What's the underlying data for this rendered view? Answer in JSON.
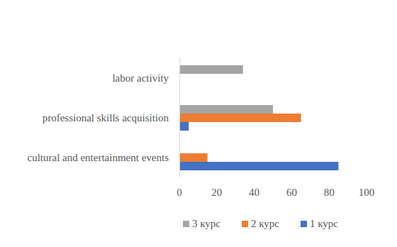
{
  "chart_data": {
    "type": "bar",
    "orientation": "horizontal",
    "categories": [
      "cultural and entertainment events",
      "professional skills acquisition",
      "labor activity"
    ],
    "series": [
      {
        "name": "1 курс",
        "color": "#4472c4",
        "values": [
          85,
          5,
          0
        ]
      },
      {
        "name": "2 курс",
        "color": "#ed7d31",
        "values": [
          15,
          65,
          0
        ]
      },
      {
        "name": "3 курс",
        "color": "#a5a5a5",
        "values": [
          0,
          50,
          34
        ]
      }
    ],
    "xlim": [
      0,
      100
    ],
    "xticks": [
      0,
      20,
      40,
      60,
      80,
      100
    ],
    "grid": false,
    "legend": "bottom"
  }
}
